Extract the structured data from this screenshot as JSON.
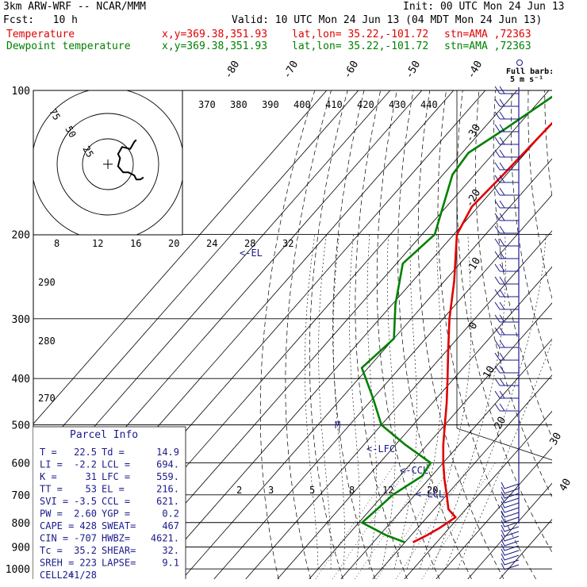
{
  "header": {
    "model": "3km ARW-WRF -- NCAR/MMM",
    "init": "Init: 00 UTC Mon 24 Jun 13",
    "fcst": "Fcst:   10 h",
    "valid": "Valid: 10 UTC Mon 24 Jun 13 (04 MDT Mon 24 Jun 13)",
    "temp_line": {
      "label": "Temperature",
      "xy": "x,y=369.38,351.93",
      "latlon": "lat,lon= 35.22,-101.72",
      "stn": "stn=AMA ,72363",
      "color": "#e00000"
    },
    "dew_line": {
      "label": "Dewpoint temperature",
      "xy": "x,y=369.38,351.93",
      "latlon": "lat,lon= 35.22,-101.72",
      "stn": "stn=AMA ,72363",
      "color": "#008000"
    }
  },
  "chart_data": {
    "type": "line",
    "diagram": "skew-T log-p",
    "pressure_ticks": [
      "100",
      "200",
      "300",
      "400",
      "500",
      "600",
      "700",
      "800",
      "900",
      "1000"
    ],
    "pressure_levels": [
      100,
      200,
      300,
      400,
      500,
      600,
      700,
      800,
      900,
      1000
    ],
    "isotherm_labels_top": [
      "-80",
      "-70",
      "-60",
      "-50",
      "-40"
    ],
    "isotherm_labels_right": [
      "-30",
      "-20",
      "-10",
      "0",
      "10",
      "20",
      "30",
      "40"
    ],
    "theta_labels": [
      "370",
      "380",
      "390",
      "400",
      "410",
      "420",
      "430",
      "440"
    ],
    "mixing_ratio_labels": [
      "2",
      "3",
      "5",
      "8",
      "12",
      "20"
    ],
    "wind_speed_labels": [
      "8",
      "12",
      "16",
      "20",
      "24",
      "28",
      "32"
    ],
    "wind_speed_unit": "kts",
    "left_theta_labels": [
      "290",
      "280",
      "270"
    ],
    "hodograph_rings": [
      "75",
      "50",
      "25"
    ],
    "annotations": {
      "el": "<-EL",
      "lfc": "<-LFC",
      "ccl": "<-CCL",
      "lcl": "<-LCL",
      "m": "M"
    },
    "barb_key": {
      "title": "Full barb:",
      "value": "5 m s⁻¹"
    },
    "series": [
      {
        "name": "Temperature",
        "color": "#e00000",
        "points": [
          {
            "p": 100,
            "t": -59
          },
          {
            "p": 120,
            "t": -60
          },
          {
            "p": 150,
            "t": -61
          },
          {
            "p": 175,
            "t": -62
          },
          {
            "p": 200,
            "t": -59
          },
          {
            "p": 250,
            "t": -47
          },
          {
            "p": 300,
            "t": -38
          },
          {
            "p": 350,
            "t": -29.5
          },
          {
            "p": 400,
            "t": -22
          },
          {
            "p": 450,
            "t": -15.5
          },
          {
            "p": 500,
            "t": -10
          },
          {
            "p": 550,
            "t": -5
          },
          {
            "p": 600,
            "t": 0
          },
          {
            "p": 650,
            "t": 5
          },
          {
            "p": 700,
            "t": 10
          },
          {
            "p": 750,
            "t": 14.5
          },
          {
            "p": 780,
            "t": 19
          },
          {
            "p": 820,
            "t": 17
          },
          {
            "p": 850,
            "t": 15
          },
          {
            "p": 880,
            "t": 12.5
          }
        ]
      },
      {
        "name": "Dewpoint temperature",
        "color": "#008000",
        "points": [
          {
            "p": 100,
            "t": -66
          },
          {
            "p": 120,
            "t": -73
          },
          {
            "p": 135,
            "t": -78
          },
          {
            "p": 150,
            "t": -77
          },
          {
            "p": 200,
            "t": -66
          },
          {
            "p": 230,
            "t": -68
          },
          {
            "p": 280,
            "t": -59
          },
          {
            "p": 330,
            "t": -50
          },
          {
            "p": 380,
            "t": -52
          },
          {
            "p": 440,
            "t": -40
          },
          {
            "p": 500,
            "t": -30
          },
          {
            "p": 550,
            "t": -17
          },
          {
            "p": 600,
            "t": -4
          },
          {
            "p": 640,
            "t": -3
          },
          {
            "p": 700,
            "t": -7
          },
          {
            "p": 750,
            "t": -8
          },
          {
            "p": 800,
            "t": -9
          },
          {
            "p": 850,
            "t": 2
          },
          {
            "p": 880,
            "t": 10
          }
        ]
      }
    ],
    "hodograph": {
      "rings_kts": [
        25,
        50,
        75
      ],
      "trace": [
        {
          "u": 28,
          "v": 24
        },
        {
          "u": 26,
          "v": 22
        },
        {
          "u": 22,
          "v": 15
        },
        {
          "u": 14,
          "v": 17
        },
        {
          "u": 10,
          "v": 10
        },
        {
          "u": 12,
          "v": 6
        },
        {
          "u": 10,
          "v": -2
        },
        {
          "u": 15,
          "v": -8
        },
        {
          "u": 20,
          "v": -8
        },
        {
          "u": 26,
          "v": -11
        },
        {
          "u": 28,
          "v": -15
        },
        {
          "u": 32,
          "v": -15
        },
        {
          "u": 35,
          "v": -13
        }
      ]
    }
  },
  "parcel_info": {
    "title": "Parcel Info",
    "rows": [
      {
        "a": "T  =",
        "av": "22.5",
        "b": "Td =",
        "bv": "14.9"
      },
      {
        "a": "LI =",
        "av": "-2.2",
        "b": "LCL =",
        "bv": "694."
      },
      {
        "a": "K  =",
        "av": "31",
        "b": "LFC =",
        "bv": "559."
      },
      {
        "a": "TT =",
        "av": "53",
        "b": "EL =",
        "bv": "216."
      },
      {
        "a": "SVI =",
        "av": "-3.5",
        "b": "CCL =",
        "bv": "621."
      },
      {
        "a": "PW =",
        "av": "2.60",
        "b": "YGP =",
        "bv": "0.2"
      },
      {
        "a": "CAPE =",
        "av": "428",
        "b": "SWEAT=",
        "bv": "467"
      },
      {
        "a": "CIN =",
        "av": "-707",
        "b": "HWBZ=",
        "bv": "4621."
      },
      {
        "a": "Tc =",
        "av": "35.2",
        "b": "SHEAR=",
        "bv": "32."
      },
      {
        "a": "SREH =",
        "av": "223",
        "b": "LAPSE=",
        "bv": "9.1"
      },
      {
        "a": "CELL =",
        "av": "241/28",
        "b": "",
        "bv": ""
      }
    ]
  },
  "colors": {
    "grid": "#000000",
    "parcel": "#1a1a8c",
    "temperature": "#e00000",
    "dewpoint": "#008000"
  }
}
